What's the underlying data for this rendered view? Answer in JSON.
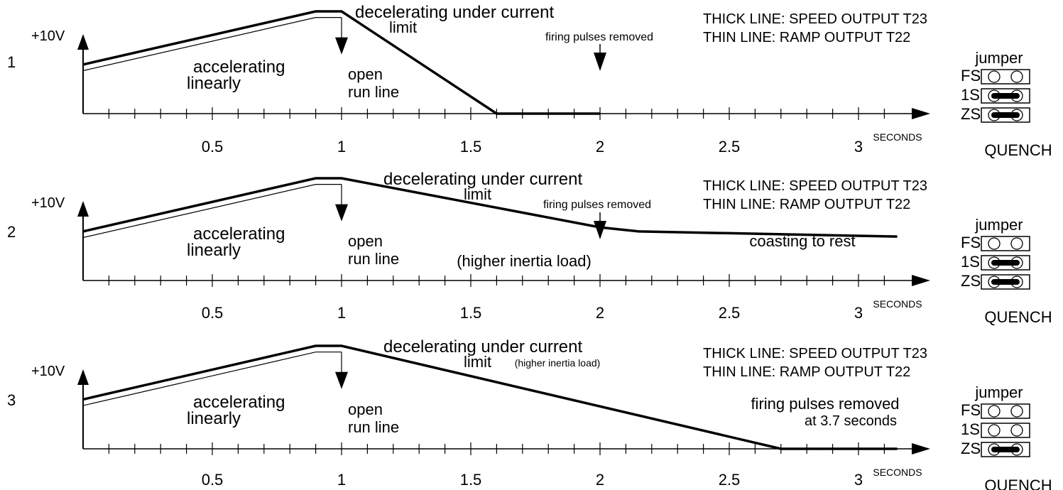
{
  "common": {
    "x_unit": "SECONDS",
    "y_top_label": "+10V",
    "thick_legend": "THICK LINE: SPEED OUTPUT T23",
    "thin_legend": "THIN LINE: RAMP OUTPUT T22",
    "jumper_title": "jumper",
    "jumper_names": [
      "FS",
      "1S",
      "ZS"
    ],
    "quench_label": "QUENCH",
    "accelerating_label": [
      "accelerating",
      "linearly"
    ],
    "open_run_label": [
      "open",
      "run line"
    ],
    "decel_label": [
      "decelerating under current",
      "limit"
    ]
  },
  "chart_data": [
    {
      "type": "line",
      "panel_label": "1",
      "x_ticks": [
        "0.5",
        "1",
        "1.5",
        "2",
        "2.5",
        "3"
      ],
      "xlim": [
        0,
        3.15
      ],
      "series": [
        {
          "name": "THICK LINE: SPEED OUTPUT T23",
          "x": [
            0,
            0.9,
            1.0,
            1.6,
            2.0
          ],
          "y": [
            0.48,
            1.0,
            1.0,
            0.0,
            0.0
          ]
        },
        {
          "name": "THIN LINE: RAMP OUTPUT T22",
          "x": [
            0,
            0.9,
            1.0
          ],
          "y": [
            0.42,
            0.94,
            0.94
          ]
        }
      ],
      "annotations": {
        "firing": "firing pulses removed",
        "extra": ""
      },
      "jumpers": {
        "FS": false,
        "1S": true,
        "ZS": true
      }
    },
    {
      "type": "line",
      "panel_label": "2",
      "x_ticks": [
        "0.5",
        "1",
        "1.5",
        "2",
        "2.5",
        "3"
      ],
      "xlim": [
        0,
        3.15
      ],
      "series": [
        {
          "name": "THICK LINE: SPEED OUTPUT T23",
          "x": [
            0,
            0.9,
            1.0,
            2.0,
            2.15,
            3.15
          ],
          "y": [
            0.48,
            1.0,
            1.0,
            0.52,
            0.48,
            0.43
          ]
        },
        {
          "name": "THIN LINE: RAMP OUTPUT T22",
          "x": [
            0,
            0.9,
            1.0
          ],
          "y": [
            0.42,
            0.94,
            0.94
          ]
        }
      ],
      "annotations": {
        "firing": "firing pulses removed",
        "coasting": "coasting to rest",
        "extra": "(higher inertia load)"
      },
      "jumpers": {
        "FS": false,
        "1S": true,
        "ZS": true
      }
    },
    {
      "type": "line",
      "panel_label": "3",
      "x_ticks": [
        "0.5",
        "1",
        "1.5",
        "2",
        "2.5",
        "3"
      ],
      "xlim": [
        0,
        3.15
      ],
      "series": [
        {
          "name": "THICK LINE: SPEED OUTPUT T23",
          "x": [
            0,
            0.9,
            1.0,
            2.7,
            3.15
          ],
          "y": [
            0.48,
            1.0,
            1.0,
            0.0,
            0.0
          ]
        },
        {
          "name": "THIN LINE: RAMP OUTPUT T22",
          "x": [
            0,
            0.9,
            1.0
          ],
          "y": [
            0.42,
            0.94,
            0.94
          ]
        }
      ],
      "annotations": {
        "firing": [
          "firing pulses removed",
          "at 3.7 seconds"
        ],
        "extra": "(higher inertia load)"
      },
      "jumpers": {
        "FS": false,
        "1S": false,
        "ZS": true
      }
    }
  ]
}
